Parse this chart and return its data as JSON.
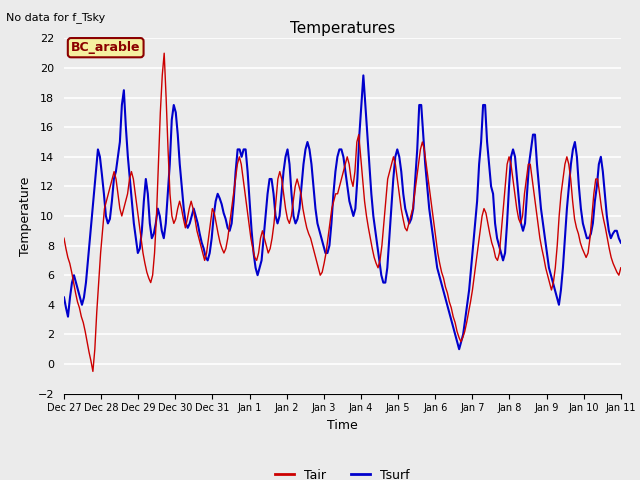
{
  "title": "Temperatures",
  "xlabel": "Time",
  "ylabel": "Temperature",
  "note": "No data for f_Tsky",
  "annotation": "BC_arable",
  "ylim": [
    -2,
    22
  ],
  "yticks": [
    -2,
    0,
    2,
    4,
    6,
    8,
    10,
    12,
    14,
    16,
    18,
    20,
    22
  ],
  "bg_color": "#ebebeb",
  "plot_bg_color": "#ebebeb",
  "tair_color": "#cc0000",
  "tsurf_color": "#0000cc",
  "legend_labels": [
    "Tair",
    "Tsurf"
  ],
  "tick_labels": [
    "Dec 27",
    "Dec 28",
    "Dec 29",
    "Dec 30",
    "Dec 31",
    "Jan 1",
    "Jan 2",
    "Jan 3",
    "Jan 4",
    "Jan 5",
    "Jan 6",
    "Jan 7",
    "Jan 8",
    "Jan 9",
    "Jan 10",
    "Jan 11"
  ],
  "tair_values": [
    8.5,
    7.8,
    7.2,
    6.8,
    6.2,
    5.5,
    4.8,
    4.2,
    3.8,
    3.2,
    2.8,
    2.2,
    1.5,
    0.8,
    0.2,
    -0.5,
    1.0,
    3.5,
    5.5,
    7.5,
    9.0,
    10.5,
    11.0,
    11.5,
    12.0,
    12.5,
    13.0,
    12.5,
    11.5,
    10.5,
    10.0,
    10.5,
    11.0,
    11.5,
    12.5,
    13.0,
    12.5,
    11.5,
    10.5,
    9.5,
    8.5,
    7.5,
    6.8,
    6.2,
    5.8,
    5.5,
    6.0,
    7.5,
    10.0,
    13.5,
    17.0,
    19.5,
    21.0,
    18.0,
    14.5,
    11.5,
    10.0,
    9.5,
    9.8,
    10.5,
    11.0,
    10.5,
    9.8,
    9.2,
    9.8,
    10.5,
    11.0,
    10.5,
    9.8,
    9.0,
    8.5,
    8.0,
    7.5,
    7.0,
    7.5,
    8.5,
    9.5,
    10.5,
    10.2,
    9.5,
    8.8,
    8.2,
    7.8,
    7.5,
    7.8,
    8.5,
    9.5,
    10.5,
    11.5,
    12.5,
    13.5,
    14.0,
    13.5,
    12.5,
    11.5,
    10.5,
    9.5,
    8.5,
    7.8,
    7.2,
    7.0,
    7.5,
    8.5,
    9.0,
    8.5,
    8.0,
    7.5,
    7.8,
    8.5,
    9.5,
    11.0,
    12.5,
    13.0,
    12.5,
    11.5,
    10.5,
    9.8,
    9.5,
    10.0,
    11.0,
    12.0,
    12.5,
    12.0,
    11.5,
    10.5,
    9.8,
    9.2,
    8.8,
    8.5,
    8.0,
    7.5,
    7.0,
    6.5,
    6.0,
    6.2,
    6.8,
    7.5,
    8.5,
    9.5,
    10.5,
    11.0,
    11.5,
    11.5,
    12.0,
    12.5,
    13.0,
    13.5,
    14.0,
    13.5,
    12.5,
    12.0,
    13.0,
    15.0,
    15.5,
    14.0,
    12.5,
    11.0,
    10.0,
    9.2,
    8.5,
    7.8,
    7.2,
    6.8,
    6.5,
    7.0,
    8.0,
    9.5,
    11.0,
    12.5,
    13.0,
    13.5,
    14.0,
    13.5,
    12.5,
    11.5,
    10.5,
    9.8,
    9.2,
    9.0,
    9.5,
    10.0,
    10.5,
    11.5,
    12.5,
    13.5,
    14.5,
    15.0,
    14.5,
    13.5,
    12.5,
    11.5,
    10.5,
    9.5,
    8.5,
    7.5,
    6.8,
    6.2,
    5.8,
    5.2,
    4.8,
    4.2,
    3.8,
    3.2,
    2.8,
    2.2,
    1.8,
    1.5,
    1.8,
    2.2,
    2.8,
    3.5,
    4.2,
    5.0,
    6.0,
    7.0,
    8.0,
    9.0,
    10.0,
    10.5,
    10.2,
    9.5,
    8.8,
    8.2,
    7.8,
    7.2,
    7.0,
    7.5,
    9.0,
    10.5,
    12.0,
    13.5,
    14.0,
    13.5,
    12.5,
    11.5,
    10.5,
    9.8,
    9.5,
    10.0,
    11.5,
    12.5,
    13.5,
    13.5,
    12.5,
    11.5,
    10.5,
    9.5,
    8.5,
    7.8,
    7.2,
    6.5,
    6.0,
    5.5,
    5.0,
    5.5,
    6.5,
    8.0,
    10.0,
    11.5,
    12.5,
    13.5,
    14.0,
    13.5,
    12.5,
    11.0,
    9.8,
    9.2,
    8.8,
    8.2,
    7.8,
    7.5,
    7.2,
    7.5,
    8.5,
    10.0,
    11.5,
    12.5,
    12.5,
    11.5,
    10.5,
    9.8,
    9.2,
    8.5,
    7.8,
    7.2,
    6.8,
    6.5,
    6.2,
    6.0,
    6.5
  ],
  "tsurf_values": [
    4.5,
    3.8,
    3.2,
    4.5,
    5.5,
    6.0,
    5.5,
    5.0,
    4.5,
    4.0,
    4.5,
    5.5,
    7.0,
    8.5,
    10.0,
    11.5,
    13.0,
    14.5,
    14.0,
    12.8,
    11.5,
    10.0,
    9.5,
    9.8,
    11.0,
    12.5,
    13.0,
    14.0,
    15.0,
    17.5,
    18.5,
    16.0,
    14.0,
    12.5,
    11.0,
    9.5,
    8.5,
    7.5,
    7.8,
    9.0,
    11.0,
    12.5,
    11.5,
    9.5,
    8.5,
    8.8,
    9.5,
    10.5,
    10.0,
    9.0,
    8.5,
    9.5,
    11.5,
    13.5,
    16.5,
    17.5,
    17.0,
    15.5,
    13.5,
    12.0,
    10.5,
    9.5,
    9.2,
    9.5,
    10.0,
    10.5,
    10.0,
    9.5,
    8.8,
    8.2,
    7.8,
    7.2,
    7.0,
    7.5,
    8.5,
    10.0,
    11.0,
    11.5,
    11.2,
    10.8,
    10.2,
    9.8,
    9.2,
    9.0,
    9.5,
    11.0,
    13.0,
    14.5,
    14.5,
    14.0,
    14.5,
    14.5,
    13.0,
    11.0,
    9.0,
    7.5,
    6.5,
    6.0,
    6.5,
    7.0,
    8.5,
    10.0,
    11.5,
    12.5,
    12.5,
    11.5,
    10.0,
    9.5,
    10.0,
    11.5,
    13.0,
    14.0,
    14.5,
    13.5,
    11.5,
    10.0,
    9.5,
    9.8,
    10.5,
    12.0,
    13.5,
    14.5,
    15.0,
    14.5,
    13.5,
    12.0,
    10.5,
    9.5,
    9.0,
    8.5,
    8.0,
    7.5,
    7.5,
    8.0,
    9.5,
    11.5,
    13.0,
    14.0,
    14.5,
    14.5,
    14.0,
    13.0,
    12.0,
    11.0,
    10.5,
    10.0,
    10.5,
    12.5,
    15.5,
    17.5,
    19.5,
    17.5,
    15.5,
    13.5,
    11.5,
    10.0,
    9.0,
    8.0,
    7.0,
    6.0,
    5.5,
    5.5,
    6.5,
    8.5,
    10.5,
    12.5,
    14.0,
    14.5,
    14.0,
    13.0,
    11.5,
    10.5,
    10.0,
    9.5,
    9.8,
    10.5,
    12.5,
    14.5,
    17.5,
    17.5,
    15.5,
    13.5,
    12.0,
    10.5,
    9.5,
    8.5,
    7.5,
    6.5,
    6.0,
    5.5,
    5.0,
    4.5,
    4.0,
    3.5,
    3.0,
    2.5,
    2.0,
    1.5,
    1.0,
    1.5,
    2.0,
    3.0,
    4.0,
    5.0,
    6.5,
    8.0,
    9.5,
    11.0,
    13.5,
    15.0,
    17.5,
    17.5,
    15.0,
    13.5,
    12.0,
    11.5,
    9.5,
    8.5,
    8.0,
    7.5,
    7.0,
    7.5,
    9.5,
    12.0,
    14.0,
    14.5,
    14.0,
    12.5,
    11.0,
    9.5,
    9.0,
    9.5,
    11.5,
    13.5,
    14.5,
    15.5,
    15.5,
    13.5,
    12.0,
    10.5,
    9.5,
    8.5,
    7.5,
    6.5,
    6.0,
    5.5,
    5.0,
    4.5,
    4.0,
    5.0,
    6.5,
    8.5,
    10.5,
    12.0,
    13.5,
    14.5,
    15.0,
    14.0,
    12.0,
    10.5,
    9.5,
    9.0,
    8.5,
    8.5,
    8.8,
    9.5,
    11.0,
    12.0,
    13.5,
    14.0,
    13.0,
    11.5,
    10.0,
    9.0,
    8.5,
    8.8,
    9.0,
    9.0,
    8.5,
    8.2
  ]
}
